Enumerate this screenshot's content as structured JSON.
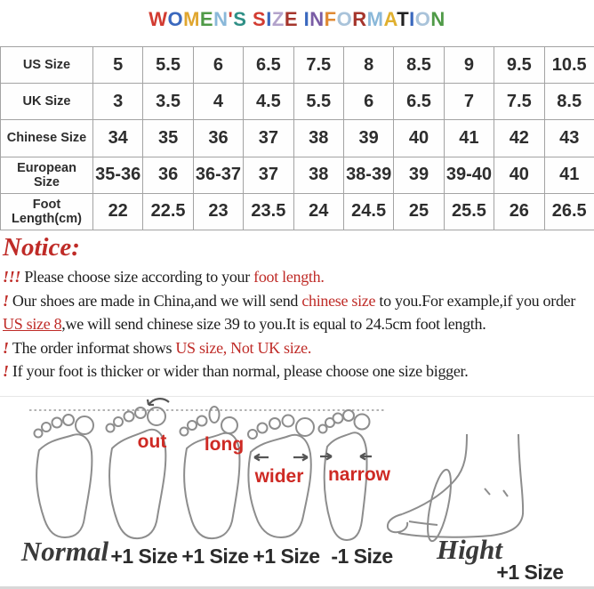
{
  "title": {
    "text": "WOMEN'S SIZE INFORMATION",
    "letters": [
      {
        "ch": "W",
        "color": "#d23b31"
      },
      {
        "ch": "O",
        "color": "#3a68be"
      },
      {
        "ch": "M",
        "color": "#e0a62f"
      },
      {
        "ch": "E",
        "color": "#4f9a47"
      },
      {
        "ch": "N",
        "color": "#8ab8d9"
      },
      {
        "ch": "'",
        "color": "#d23b31"
      },
      {
        "ch": "S",
        "color": "#2e8f86"
      },
      {
        "ch": " ",
        "color": "#000000"
      },
      {
        "ch": "S",
        "color": "#d23b31"
      },
      {
        "ch": "I",
        "color": "#3a68be"
      },
      {
        "ch": "Z",
        "color": "#b3a3cb"
      },
      {
        "ch": "E",
        "color": "#a5352c"
      },
      {
        "ch": " ",
        "color": "#000000"
      },
      {
        "ch": "I",
        "color": "#3a68be"
      },
      {
        "ch": "N",
        "color": "#7a5ca5"
      },
      {
        "ch": "F",
        "color": "#e08a33"
      },
      {
        "ch": "O",
        "color": "#a9c3da"
      },
      {
        "ch": "R",
        "color": "#a5352c"
      },
      {
        "ch": "M",
        "color": "#8ab8d9"
      },
      {
        "ch": "A",
        "color": "#e0b02f"
      },
      {
        "ch": "T",
        "color": "#222222"
      },
      {
        "ch": "I",
        "color": "#3a68be"
      },
      {
        "ch": "O",
        "color": "#a9c3da"
      },
      {
        "ch": "N",
        "color": "#4f9a47"
      }
    ]
  },
  "chart_data": {
    "type": "table",
    "title": "WOMEN'S SIZE INFORMATION",
    "rows": [
      {
        "label": "US Size",
        "values": [
          "5",
          "5.5",
          "6",
          "6.5",
          "7.5",
          "8",
          "8.5",
          "9",
          "9.5",
          "10.5"
        ]
      },
      {
        "label": "UK Size",
        "values": [
          "3",
          "3.5",
          "4",
          "4.5",
          "5.5",
          "6",
          "6.5",
          "7",
          "7.5",
          "8.5"
        ]
      },
      {
        "label": "Chinese Size",
        "values": [
          "34",
          "35",
          "36",
          "37",
          "38",
          "39",
          "40",
          "41",
          "42",
          "43"
        ]
      },
      {
        "label": "European Size",
        "values": [
          "35-36",
          "36",
          "36-37",
          "37",
          "38",
          "38-39",
          "39",
          "39-40",
          "40",
          "41"
        ]
      },
      {
        "label": "Foot Length(cm)",
        "values": [
          "22",
          "22.5",
          "23",
          "23.5",
          "24",
          "24.5",
          "25",
          "25.5",
          "26",
          "26.5"
        ]
      }
    ]
  },
  "notice": {
    "heading": "Notice:",
    "lines": [
      [
        {
          "t": "!!! ",
          "c": "red",
          "i": true
        },
        {
          "t": "Please choose size according to your ",
          "c": "black"
        },
        {
          "t": "foot length.",
          "c": "red"
        }
      ],
      [
        {
          "t": "! ",
          "c": "red",
          "i": true
        },
        {
          "t": "Our shoes are made in China,and we will send ",
          "c": "black"
        },
        {
          "t": "chinese size",
          "c": "red"
        },
        {
          "t": " to you.For example,if you order",
          "c": "black"
        }
      ],
      [
        {
          "t": "US size 8",
          "c": "red",
          "u": true
        },
        {
          "t": ",we will send chinese size 39 to you.It is equal to 24.5cm foot length.",
          "c": "black"
        }
      ],
      [
        {
          "t": "! ",
          "c": "red",
          "i": true
        },
        {
          "t": "The order informat shows ",
          "c": "black"
        },
        {
          "t": "US size, Not UK size.",
          "c": "red"
        }
      ],
      [
        {
          "t": "! ",
          "c": "red",
          "i": true
        },
        {
          "t": "If your foot is thicker or wider than normal, please choose one size bigger.",
          "c": "black"
        }
      ]
    ]
  },
  "diagram": {
    "foot_labels": {
      "out": "out",
      "long": "long",
      "wider": "wider",
      "narrow": "narrow"
    },
    "bottom_labels": {
      "normal": "Normal",
      "plus1_a": "+1 Size",
      "plus1_b": "+1 Size",
      "plus1_c": "+1 Size",
      "minus1": "-1 Size",
      "hight": "Hight",
      "hight_plus1": "+1 Size"
    }
  },
  "colors": {
    "notice_red": "#bf2b27",
    "foot_label_red": "#ce2a24",
    "sketch_gray": "#8d8d8d",
    "table_grid": "#a3a3a3",
    "text_dark": "#2b2b2b"
  }
}
